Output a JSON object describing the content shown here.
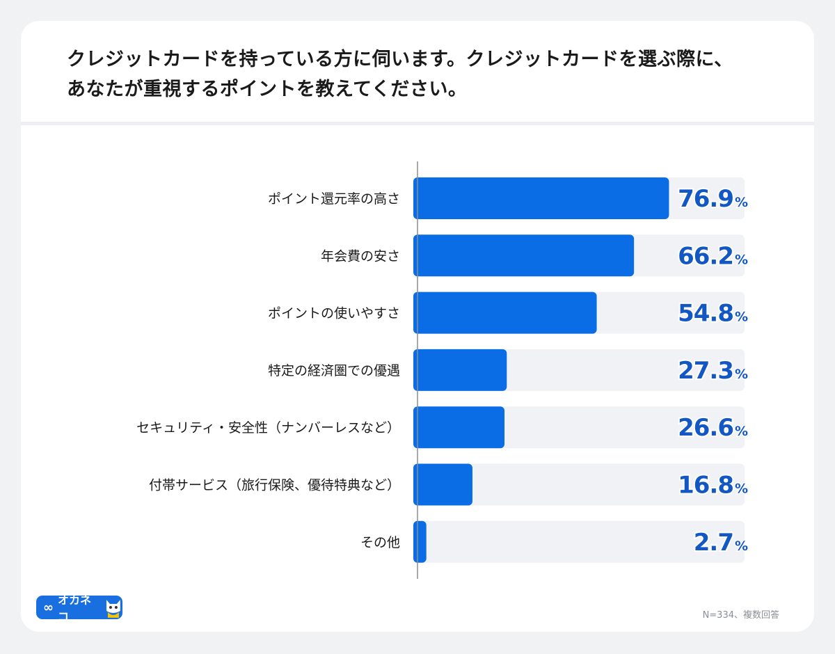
{
  "chart_data": {
    "type": "bar",
    "orientation": "horizontal",
    "title": "クレジットカードを持っている方に伺います。クレジットカードを選ぶ際に、\nあなたが重視するポイントを教えてください。",
    "title_lines": [
      "クレジットカードを持っている方に伺います。クレジットカードを選ぶ際に、",
      "あなたが重視するポイントを教えてください。"
    ],
    "categories": [
      "ポイント還元率の高さ",
      "年会費の安さ",
      "ポイントの使いやすさ",
      "特定の経済圏での優遇",
      "セキュリティ・安全性（ナンバーレスなど）",
      "付帯サービス（旅行保険、優待特典など）",
      "その他"
    ],
    "values": [
      76.9,
      66.2,
      54.8,
      27.3,
      26.6,
      16.8,
      2.7
    ],
    "value_labels": [
      "76.9",
      "66.2",
      "54.8",
      "27.3",
      "26.6",
      "16.8",
      "2.7"
    ],
    "unit": "%",
    "xlim": [
      0,
      100
    ],
    "grid": false,
    "colors": {
      "bar": "#0a6de6",
      "track": "#f0f2f5",
      "label": "#1257c4"
    }
  },
  "footnote": "N=334、複数回答",
  "logo": {
    "text": "オカネコ",
    "icon": "infinity-icon"
  }
}
